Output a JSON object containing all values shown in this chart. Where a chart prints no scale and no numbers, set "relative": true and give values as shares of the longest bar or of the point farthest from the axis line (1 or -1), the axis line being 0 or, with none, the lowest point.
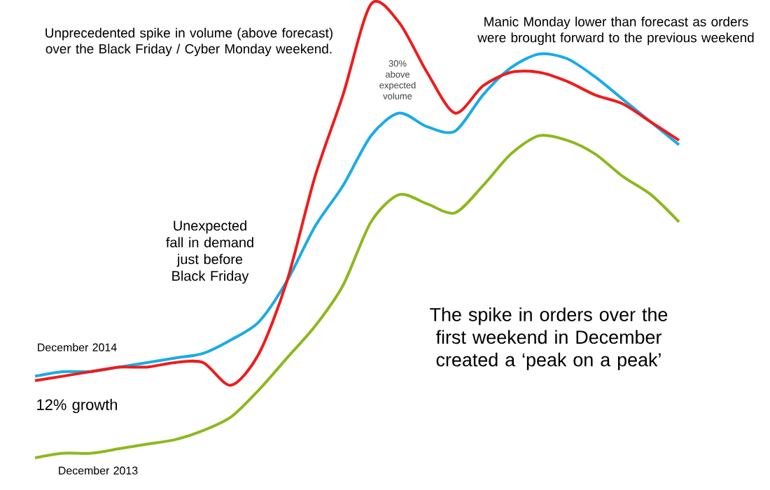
{
  "chart_data": {
    "type": "line",
    "relative": true,
    "categories": [
      null,
      null,
      null,
      null,
      null,
      null,
      null,
      null,
      null,
      null,
      null,
      null,
      null,
      null,
      null,
      null,
      null,
      null,
      null,
      null,
      null,
      null,
      null,
      null
    ],
    "series": [
      {
        "color": "#1aabe6",
        "values": [
          0.18,
          0.19,
          0.19,
          0.2,
          0.21,
          0.22,
          0.23,
          0.26,
          0.3,
          0.39,
          0.51,
          0.6,
          0.71,
          0.76,
          0.73,
          0.72,
          0.8,
          0.86,
          0.89,
          0.88,
          0.84,
          0.79,
          0.74,
          0.69
        ]
      },
      {
        "color": "#ee1c1c",
        "values": [
          0.17,
          0.18,
          0.19,
          0.2,
          0.2,
          0.21,
          0.21,
          0.16,
          0.23,
          0.39,
          0.62,
          0.8,
          1.0,
          0.96,
          0.85,
          0.76,
          0.82,
          0.85,
          0.85,
          0.83,
          0.8,
          0.78,
          0.74,
          0.7
        ]
      },
      {
        "color": "#8db81e",
        "values": [
          0,
          0.01,
          0.01,
          0.02,
          0.03,
          0.04,
          0.06,
          0.09,
          0.15,
          0.22,
          0.29,
          0.38,
          0.52,
          0.58,
          0.56,
          0.54,
          0.6,
          0.67,
          0.71,
          0.7,
          0.67,
          0.62,
          0.58,
          0.52
        ]
      }
    ],
    "annotations": [
      "Unprecedented spike in volume (above forecast) over the Black Friday / Cyber Monday weekend.",
      "30% above expected volume",
      "Manic Monday lower than forecast as orders were brought forward to the previous weekend",
      "Unexpected fall in demand just before Black Friday",
      "December 2014",
      "12% growth",
      "December 2013",
      "The spike in orders over the first weekend in December created a ‘peak on a peak’"
    ],
    "marker": "none",
    "line_style": "solid"
  }
}
